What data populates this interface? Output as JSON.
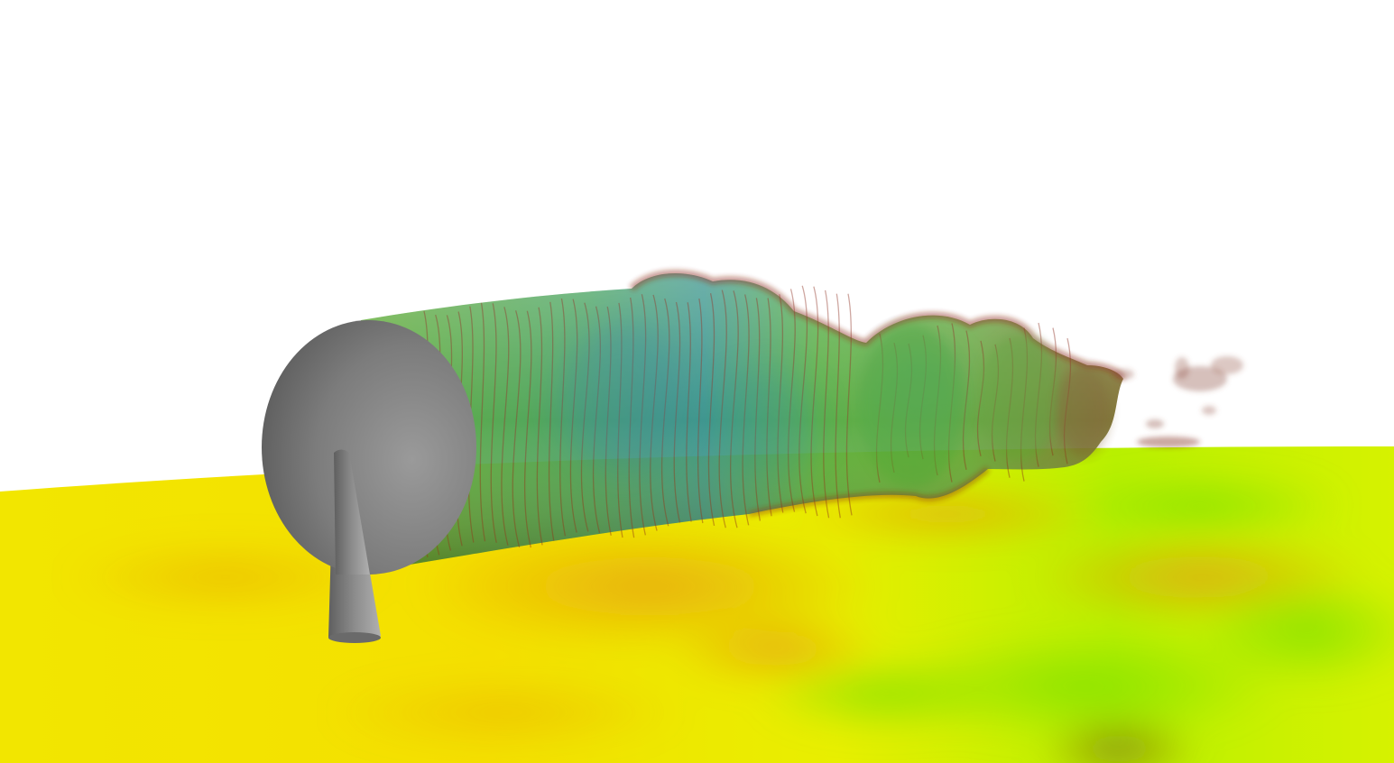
{
  "scene": {
    "background": "#ffffff",
    "ground_colors": [
      "#f3ee00",
      "#f0c000",
      "#e69d10",
      "#9fe000",
      "#c8f000"
    ],
    "wake_colors": [
      "#3f9f3a",
      "#2f8f86",
      "#8a2a1a",
      "#6fb82b"
    ],
    "rotor_color": "#7a7a7a",
    "tower_color": "#8a8a8a"
  }
}
